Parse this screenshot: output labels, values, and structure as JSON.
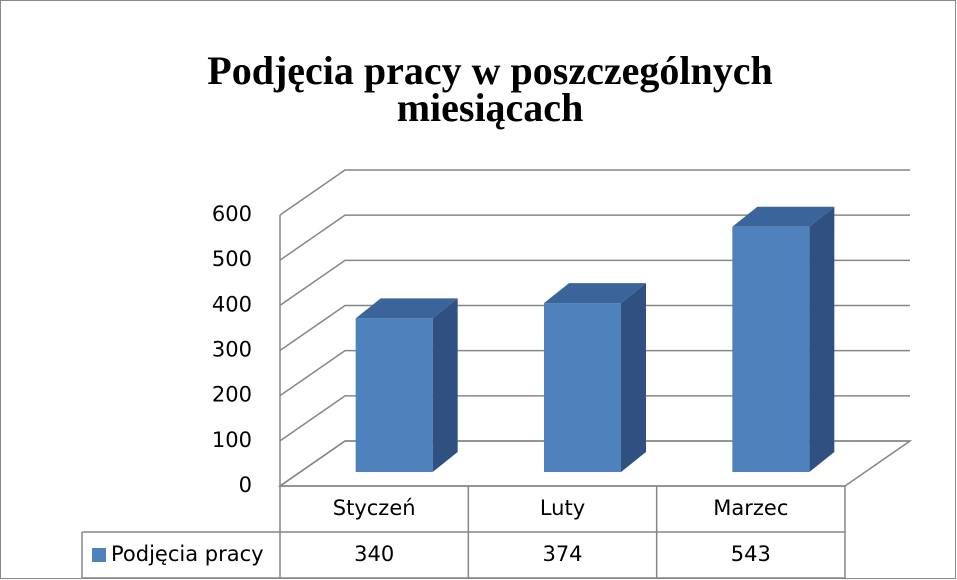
{
  "chart_data": {
    "type": "bar",
    "title": "Podjęcia pracy w poszczególnych miesiącach",
    "categories": [
      "Styczeń",
      "Luty",
      "Marzec"
    ],
    "series": [
      {
        "name": "Podjęcia pracy",
        "color": "#4f81bd",
        "values": [
          340,
          374,
          543
        ]
      }
    ],
    "ylim": [
      0,
      600
    ],
    "yticks": [
      0,
      100,
      200,
      300,
      400,
      500,
      600
    ],
    "grid": true,
    "data_table": true
  }
}
